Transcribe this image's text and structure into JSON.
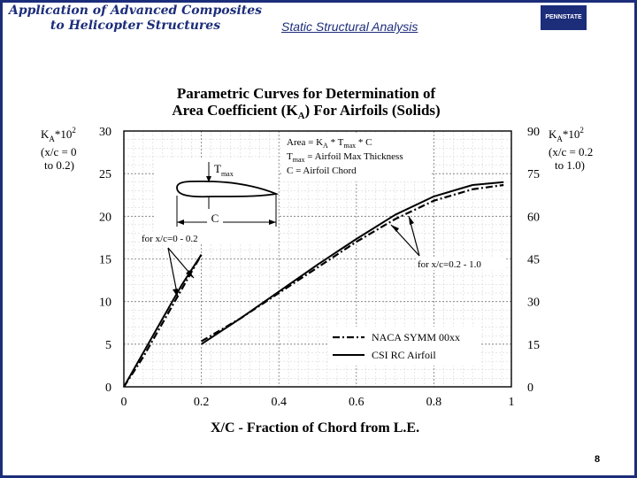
{
  "header": {
    "title_line1": "Application of Advanced Composites",
    "title_line2": "to Helicopter Structures",
    "subtitle": "Static Structural Analysis",
    "logo_text": "PENNSTATE"
  },
  "page_number": "8",
  "chart_data": {
    "type": "line",
    "title_line1": "Parametric Curves for Determination of",
    "title_line2": "Area Coefficient (K",
    "title_line2_sub": "A",
    "title_line2_end": ") For Airfoils (Solids)",
    "xlabel": "X/C - Fraction of Chord from L.E.",
    "xlim": [
      0,
      1
    ],
    "x_ticks": [
      "0",
      "0.2",
      "0.4",
      "0.6",
      "0.8",
      "1"
    ],
    "y_left": {
      "label_main": "K",
      "label_sub": "A",
      "label_end": "*10",
      "label_sup": "2",
      "label_line2": "(x/c = 0",
      "label_line3": "to 0.2)",
      "ylim": [
        0,
        30
      ],
      "ticks": [
        "0",
        "5",
        "10",
        "15",
        "20",
        "25",
        "30"
      ]
    },
    "y_right": {
      "label_main": "K",
      "label_sub": "A",
      "label_end": "*10",
      "label_sup": "2",
      "label_line2": "(x/c = 0.2",
      "label_line3": "to 1.0)",
      "ylim": [
        0,
        90
      ],
      "ticks": [
        "0",
        "15",
        "30",
        "45",
        "60",
        "75",
        "90"
      ]
    },
    "formula": {
      "line1": "Area = K",
      "line1_sub": "A",
      "line1_mid": " * T",
      "line1_sub2": "max",
      "line1_end": " * C",
      "line2": "T",
      "line2_sub": "max",
      "line2_end": " = Airfoil Max Thickness",
      "line3": "C = Airfoil Chord"
    },
    "airfoil_labels": {
      "tmax": "T",
      "tmax_sub": "max",
      "chord": "C"
    },
    "annotations": {
      "left_range": "for x/c=0 - 0.2",
      "right_range": "for x/c=0.2 - 1.0"
    },
    "series": [
      {
        "name": "NACA SYMM 00xx",
        "style": "dash-dot",
        "left_segment": {
          "axis": "left",
          "x": [
            0,
            0.05,
            0.1,
            0.15,
            0.2
          ],
          "y": [
            0,
            3.5,
            7.5,
            11.5,
            15.5
          ]
        },
        "right_segment": {
          "axis": "right",
          "x": [
            0.2,
            0.3,
            0.4,
            0.5,
            0.6,
            0.7,
            0.8,
            0.9,
            0.98
          ],
          "y": [
            16,
            24,
            33,
            42,
            51,
            59,
            65.5,
            69.5,
            71
          ]
        }
      },
      {
        "name": "CSI RC Airfoil",
        "style": "solid",
        "left_segment": {
          "axis": "left",
          "x": [
            0,
            0.05,
            0.1,
            0.15,
            0.2
          ],
          "y": [
            0,
            4,
            8,
            12,
            15.5
          ]
        },
        "right_segment": {
          "axis": "right",
          "x": [
            0.2,
            0.3,
            0.4,
            0.5,
            0.6,
            0.7,
            0.8,
            0.9,
            0.98
          ],
          "y": [
            15,
            24,
            33.5,
            43,
            52,
            60.5,
            67,
            71,
            72
          ]
        }
      }
    ],
    "grid": true,
    "legend_position": "bottom-right"
  }
}
